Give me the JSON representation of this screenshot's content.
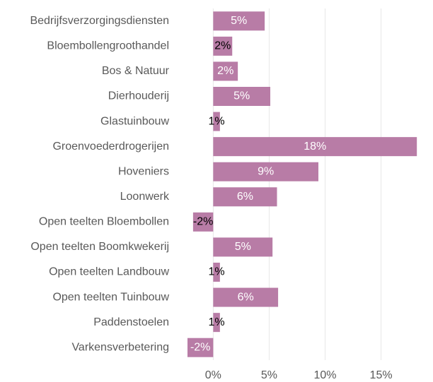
{
  "chart_data": {
    "type": "barh",
    "categories": [
      "Bedrijfsverzorgingsdiensten",
      "Bloembollengroothandel",
      "Bos & Natuur",
      "Dierhouderij",
      "Glastuinbouw",
      "Groenvoederdrogerijen",
      "Hoveniers",
      "Loonwerk",
      "Open teelten Bloembollen",
      "Open teelten Boomkwekerij",
      "Open teelten Landbouw",
      "Open teelten Tuinbouw",
      "Paddenstoelen",
      "Varkensverbetering"
    ],
    "values": [
      4.6,
      1.7,
      2.2,
      5.1,
      0.6,
      18.2,
      9.4,
      5.7,
      -1.8,
      5.3,
      0.6,
      5.8,
      0.6,
      -2.3
    ],
    "value_labels": [
      "5%",
      "2%",
      "2%",
      "5%",
      "1%",
      "18%",
      "9%",
      "6%",
      "-2%",
      "5%",
      "1%",
      "6%",
      "1%",
      "-2%"
    ],
    "color": "#b87ca6",
    "xlim": [
      -3.5,
      19.2
    ],
    "xticks": [
      {
        "value": 0,
        "label": "0%"
      },
      {
        "value": 5,
        "label": "5%"
      },
      {
        "value": 10,
        "label": "10%"
      },
      {
        "value": 15,
        "label": "15%"
      }
    ],
    "grid": true
  }
}
